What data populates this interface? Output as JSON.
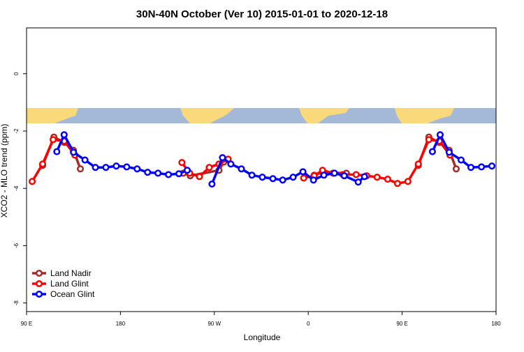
{
  "chart_data": {
    "type": "line",
    "title": "30N-40N October (Ver 10)   2015-01-01 to 2020-12-18",
    "x_label": "Longitude",
    "y_label": "XCO2 - MLO trend (ppm)",
    "xlim": [
      90,
      540
    ],
    "xticks": [
      {
        "value": 90,
        "label": "90 E"
      },
      180,
      {
        "value": 270,
        "label": "90 W"
      },
      {
        "value": 360,
        "label": "0"
      },
      {
        "value": 450,
        "label": "90 E"
      },
      {
        "value": 540,
        "label": "180"
      }
    ],
    "ylim": [
      -8.3,
      1.6
    ],
    "yticks": [
      0,
      -2,
      -4,
      -6,
      -8
    ],
    "legend": "bottom-left",
    "series": [
      {
        "name": "Land Nadir",
        "color": "#a52a2a",
        "x": [
          105.4,
          116.2,
          126.2,
          134.9,
          141.6,
          null,
          240.2,
          246.9,
          274.4,
          279.1,
          null,
          365.7,
          373.7,
          396.5,
          null,
          465.5,
          475.6,
          485.7,
          495.1,
          501.8
        ],
        "values": [
          -3.2,
          -2.21,
          -2.4,
          -2.67,
          -3.32,
          null,
          -3.47,
          -3.56,
          -3.37,
          -3.08,
          null,
          -3.54,
          -3.44,
          -3.47,
          null,
          -3.2,
          -2.21,
          -2.4,
          -2.67,
          -3.32
        ]
      },
      {
        "name": "Land Glint",
        "color": "#ff0000",
        "x": [
          95.4,
          105.4,
          115.5,
          126.2,
          136.3,
          null,
          238.9,
          246.3,
          255.7,
          265.1,
          274.4,
          283.2,
          null,
          355.6,
          365.7,
          373.7,
          383.8,
          393.2,
          405.9,
          416,
          426,
          436.1,
          445.5,
          455.5,
          465.5,
          475.6,
          485.7,
          495.8
        ],
        "values": [
          -3.76,
          -3.15,
          -2.3,
          -2.35,
          -2.84,
          null,
          -3.1,
          -3.47,
          -3.59,
          -3.27,
          -3.15,
          -2.98,
          null,
          -3.64,
          -3.56,
          -3.37,
          -3.47,
          -3.52,
          -3.52,
          -3.56,
          -3.61,
          -3.68,
          -3.83,
          -3.76,
          -3.15,
          -2.3,
          -2.35,
          -2.84
        ]
      },
      {
        "name": "Ocean Glint",
        "color": "#0000ff",
        "x": [
          119,
          126,
          135,
          146,
          156,
          166,
          176,
          186,
          196,
          206,
          216,
          226,
          236,
          244,
          null,
          267.7,
          277.8,
          285.8,
          295.9,
          306,
          316,
          326.1,
          335.5,
          345.5,
          354.9,
          365,
          375,
          385.1,
          394.5,
          407.9,
          413.9,
          null,
          479,
          486.4,
          495.1,
          506.5,
          515.9,
          526,
          536
        ],
        "values": [
          -2.72,
          -2.13,
          -2.74,
          -3.01,
          -3.27,
          -3.27,
          -3.22,
          -3.25,
          -3.32,
          -3.44,
          -3.47,
          -3.52,
          -3.49,
          -3.37,
          null,
          -3.85,
          -2.93,
          -3.15,
          -3.32,
          -3.54,
          -3.61,
          -3.66,
          -3.71,
          -3.61,
          -3.42,
          -3.71,
          -3.54,
          -3.47,
          -3.56,
          -3.78,
          -3.59,
          null,
          -2.72,
          -2.13,
          -2.74,
          -3.01,
          -3.27,
          -3.25,
          -3.22
        ]
      }
    ]
  }
}
